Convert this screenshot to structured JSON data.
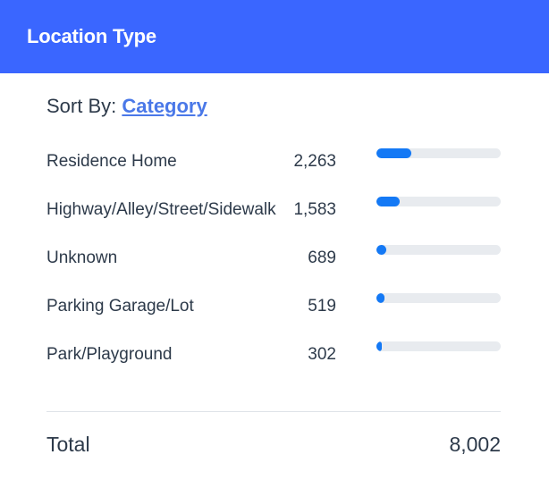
{
  "header": {
    "title": "Location Type"
  },
  "sort": {
    "label": "Sort By:",
    "value": "Category"
  },
  "rows": [
    {
      "label": "Residence Home",
      "value": "2,263",
      "fraction": 0.28
    },
    {
      "label": "Highway/Alley/Street/Sidewalk",
      "value": "1,583",
      "fraction": 0.19
    },
    {
      "label": "Unknown",
      "value": "689",
      "fraction": 0.08
    },
    {
      "label": "Parking Garage/Lot",
      "value": "519",
      "fraction": 0.065
    },
    {
      "label": "Park/Playground",
      "value": "302",
      "fraction": 0.04
    }
  ],
  "total": {
    "label": "Total",
    "value": "8,002"
  },
  "colors": {
    "header_bg": "#3a66ff",
    "bar_fill": "#1479f5",
    "bar_track": "#e8ebef",
    "link": "#4a78e8"
  }
}
